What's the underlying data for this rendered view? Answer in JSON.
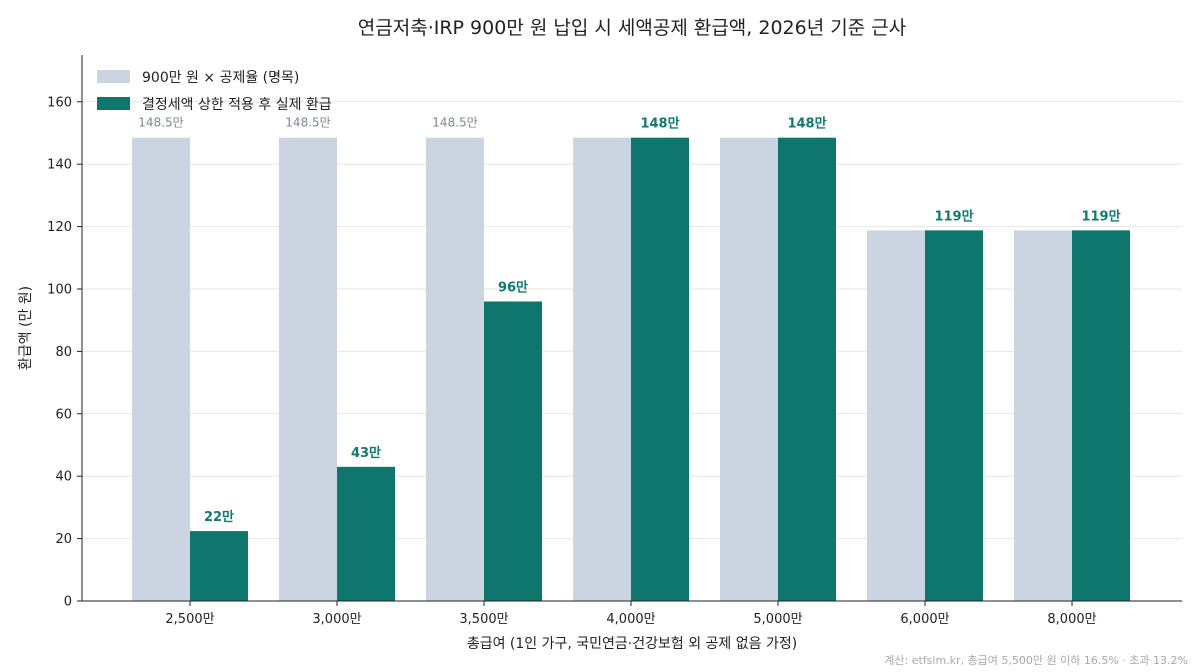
{
  "chart_data": {
    "type": "bar",
    "title": "연금저축·IRP 900만 원 납입 시 세액공제 환급액, 2026년 기준 근사",
    "xlabel": "총급여 (1인 가구, 국민연금·건강보험 외 공제 없음 가정)",
    "ylabel": "환급액 (만 원)",
    "ylim": [
      0,
      175
    ],
    "yticks": [
      0,
      20,
      40,
      60,
      80,
      100,
      120,
      140,
      160
    ],
    "grid": true,
    "legend_position": "top-left",
    "categories": [
      "2,500만",
      "3,000만",
      "3,500만",
      "4,000만",
      "5,000만",
      "6,000만",
      "8,000만"
    ],
    "series": [
      {
        "name": "900만 원 × 공제율 (명목)",
        "color": "#cbd5e1",
        "values": [
          148.5,
          148.5,
          148.5,
          148.5,
          148.5,
          118.8,
          118.8
        ],
        "labels": [
          "148.5만",
          "148.5만",
          "148.5만",
          "",
          "",
          "",
          ""
        ]
      },
      {
        "name": "결정세액 상한 적용 후 실제 환급",
        "color": "#0f766e",
        "values": [
          22.4,
          43,
          96,
          148.5,
          148.5,
          118.8,
          118.8
        ],
        "labels": [
          "22만",
          "43만",
          "96만",
          "148만",
          "148만",
          "119만",
          "119만"
        ]
      }
    ],
    "source_note": "계산: etfsim.kr, 총급여 5,500만 원 이하 16.5% · 초과 13.2%"
  }
}
